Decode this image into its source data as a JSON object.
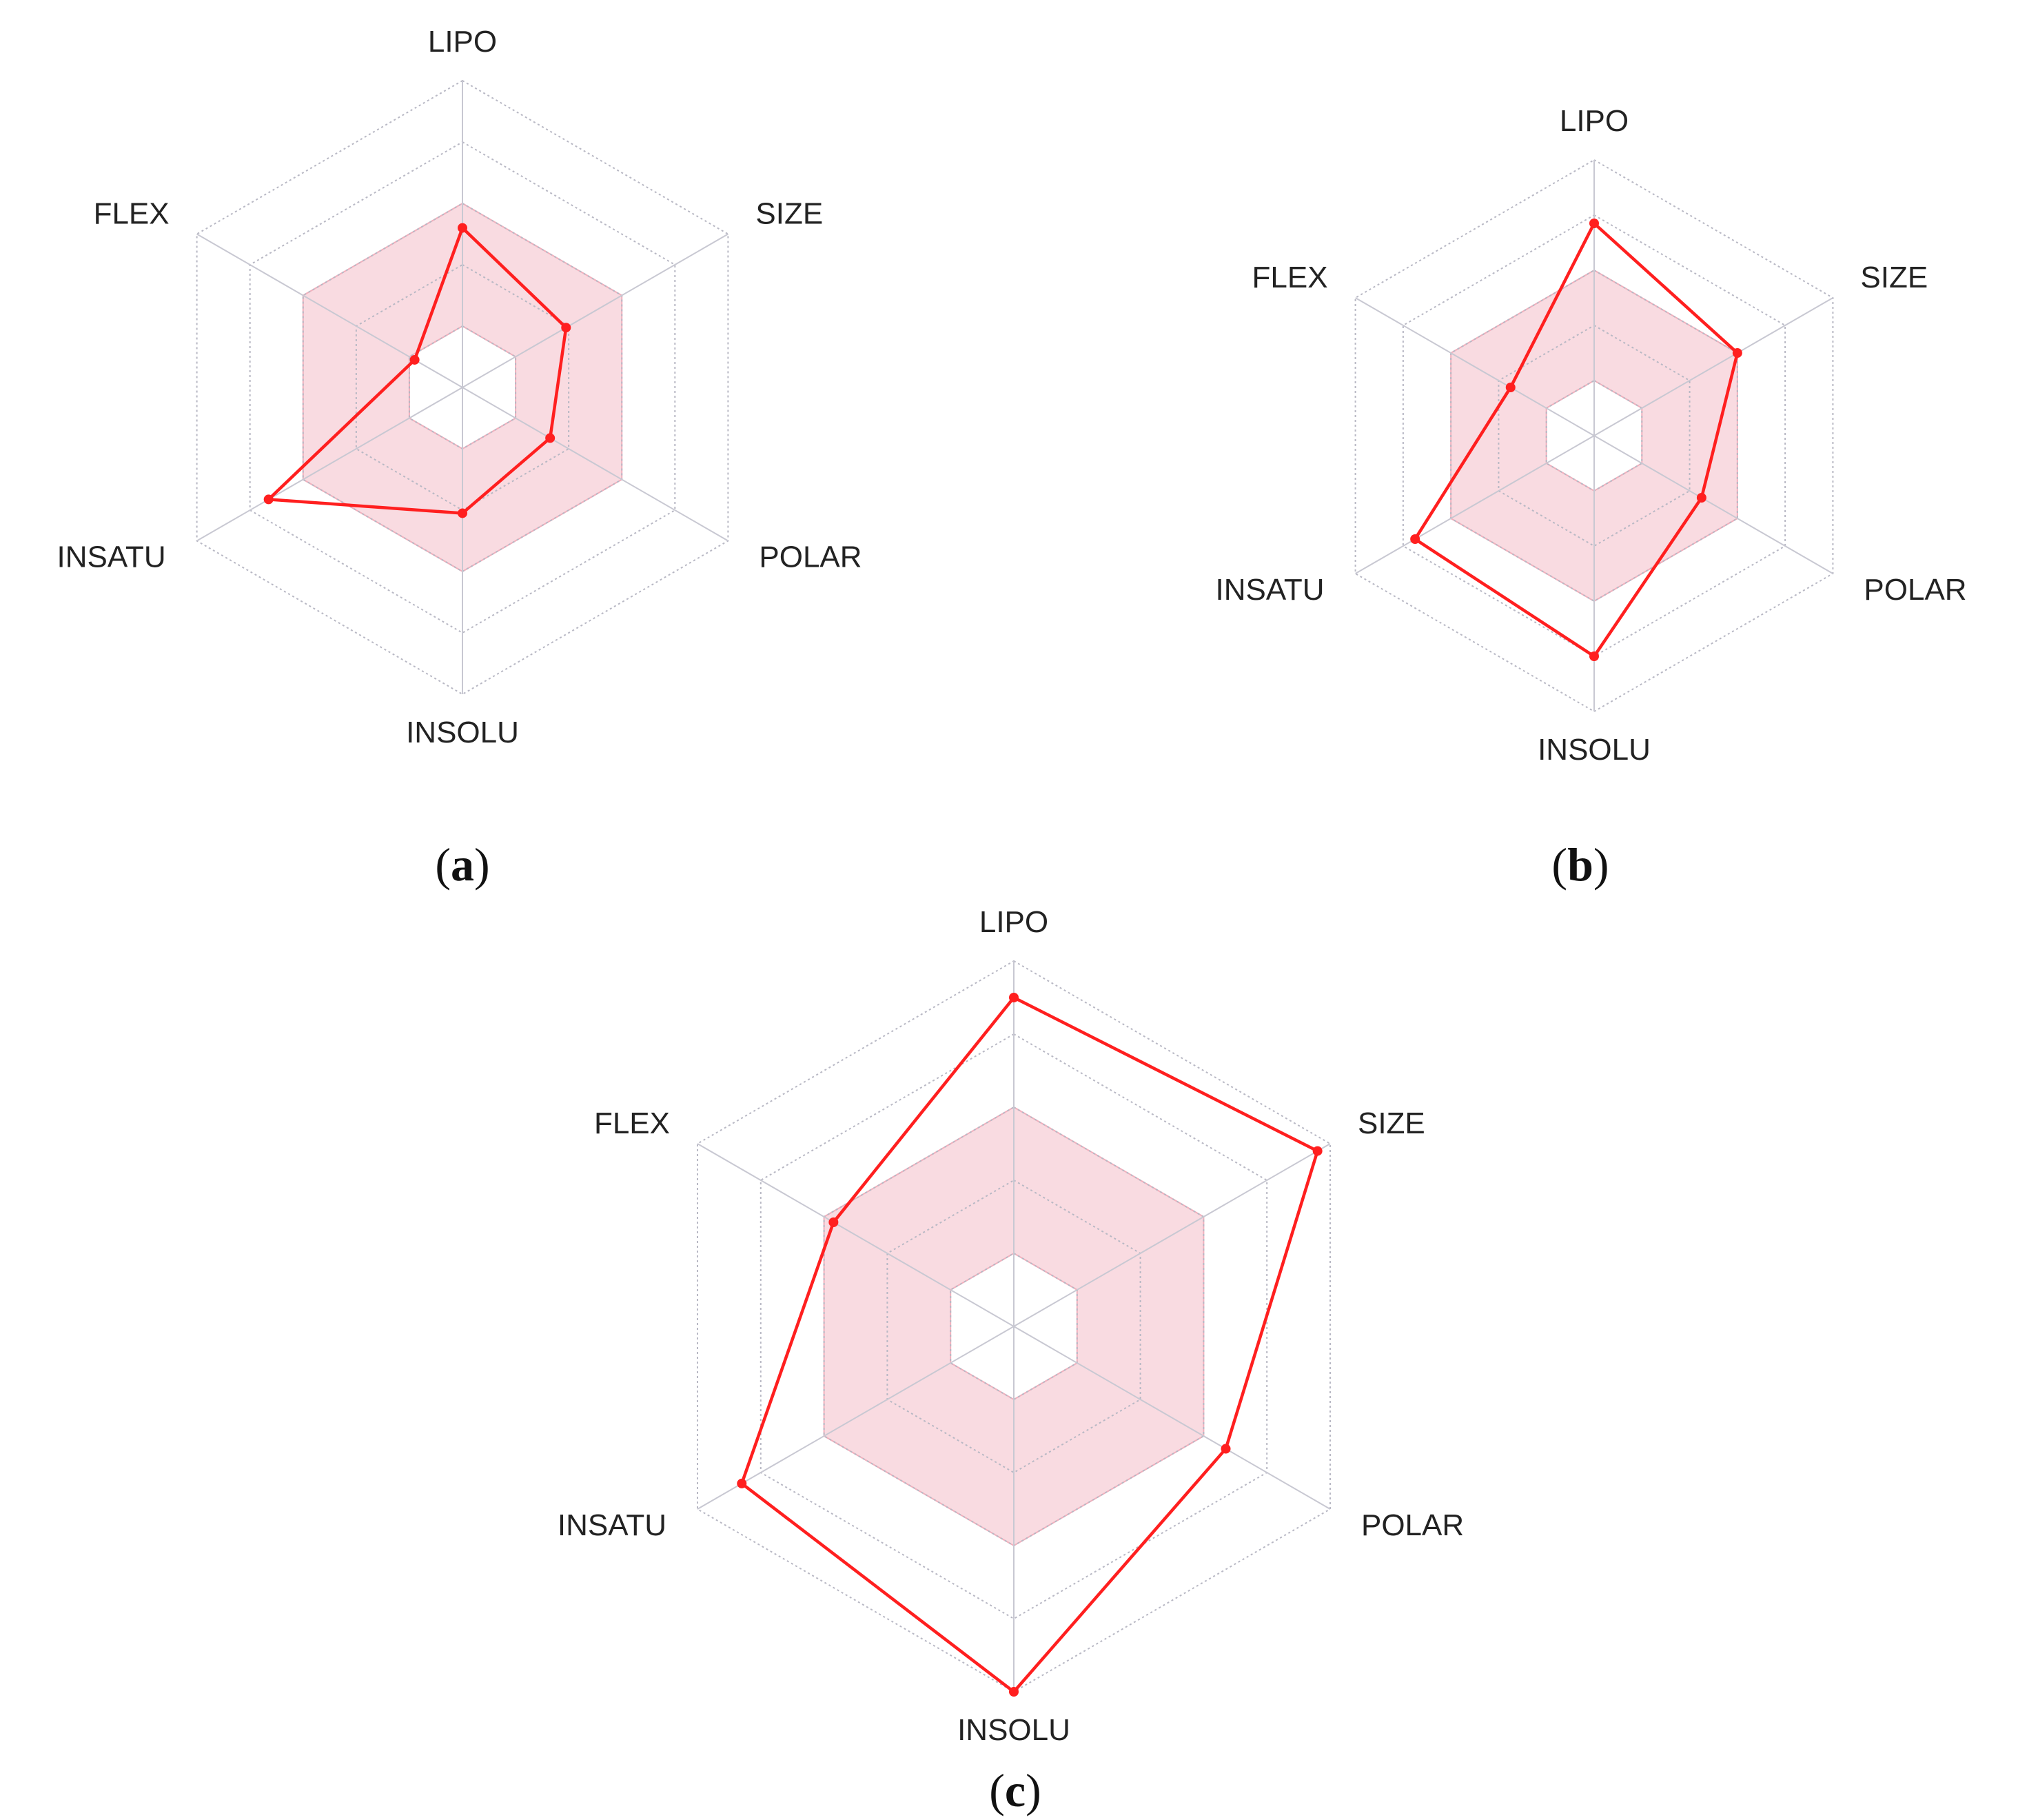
{
  "chart_data": [
    {
      "type": "radar",
      "panel": "a",
      "caption": {
        "open": "(",
        "letter": "a",
        "close": ")"
      },
      "axes": [
        "LIPO",
        "SIZE",
        "POLAR",
        "INSOLU",
        "INSATU",
        "FLEX"
      ],
      "rings": 5,
      "grid": true,
      "optimal_range": {
        "inner": 0.2,
        "outer": 0.6,
        "color": "#f8d5dc"
      },
      "series": [
        {
          "values": [
            0.52,
            0.39,
            0.33,
            0.41,
            0.73,
            0.18
          ],
          "color": "#ff1f1f"
        }
      ]
    },
    {
      "type": "radar",
      "panel": "b",
      "caption": {
        "open": "(",
        "letter": "b",
        "close": ")"
      },
      "axes": [
        "LIPO",
        "SIZE",
        "POLAR",
        "INSOLU",
        "INSATU",
        "FLEX"
      ],
      "rings": 5,
      "grid": true,
      "optimal_range": {
        "inner": 0.2,
        "outer": 0.6,
        "color": "#f8d5dc"
      },
      "series": [
        {
          "values": [
            0.77,
            0.6,
            0.45,
            0.8,
            0.75,
            0.35
          ],
          "color": "#ff1f1f"
        }
      ]
    },
    {
      "type": "radar",
      "panel": "c",
      "caption": {
        "open": "(",
        "letter": "c",
        "close": ")"
      },
      "axes": [
        "LIPO",
        "SIZE",
        "POLAR",
        "INSOLU",
        "INSATU",
        "FLEX"
      ],
      "rings": 5,
      "grid": true,
      "optimal_range": {
        "inner": 0.2,
        "outer": 0.6,
        "color": "#f8d5dc"
      },
      "series": [
        {
          "values": [
            0.9,
            0.96,
            0.67,
            1.0,
            0.86,
            0.57
          ],
          "color": "#ff1f1f"
        }
      ]
    }
  ]
}
